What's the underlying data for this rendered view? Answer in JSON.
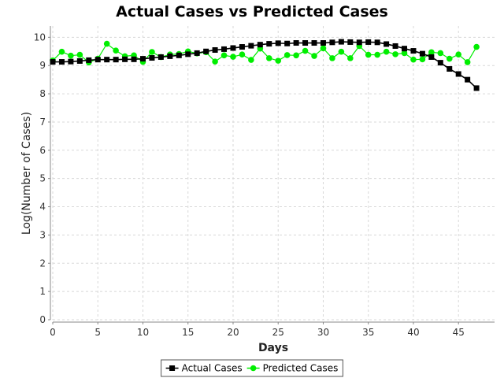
{
  "chart_data": {
    "type": "line",
    "title": "Actual Cases vs Predicted Cases",
    "xlabel": "Days",
    "ylabel": "Log(Number of Cases)",
    "xlim": [
      0,
      49
    ],
    "ylim": [
      0,
      10.4
    ],
    "xticks": [
      0,
      5,
      10,
      15,
      20,
      25,
      30,
      35,
      40,
      45
    ],
    "yticks": [
      0,
      1,
      2,
      3,
      4,
      5,
      6,
      7,
      8,
      9,
      10
    ],
    "grid": true,
    "legend": "bottom-center",
    "x": [
      0,
      1,
      2,
      3,
      4,
      5,
      6,
      7,
      8,
      9,
      10,
      11,
      12,
      13,
      14,
      15,
      16,
      17,
      18,
      19,
      20,
      21,
      22,
      23,
      24,
      25,
      26,
      27,
      28,
      29,
      30,
      31,
      32,
      33,
      34,
      35,
      36,
      37,
      38,
      39,
      40,
      41,
      42,
      43,
      44,
      45,
      46,
      47
    ],
    "series": [
      {
        "name": "Actual Cases",
        "color": "#000000",
        "marker": "square",
        "values": [
          9.13,
          9.13,
          9.14,
          9.16,
          9.19,
          9.21,
          9.21,
          9.21,
          9.22,
          9.22,
          9.24,
          9.27,
          9.3,
          9.33,
          9.36,
          9.4,
          9.44,
          9.5,
          9.55,
          9.58,
          9.62,
          9.66,
          9.7,
          9.74,
          9.77,
          9.79,
          9.78,
          9.8,
          9.8,
          9.8,
          9.8,
          9.82,
          9.84,
          9.83,
          9.82,
          9.83,
          9.82,
          9.76,
          9.69,
          9.6,
          9.52,
          9.42,
          9.3,
          9.1,
          8.88,
          8.7,
          8.5,
          8.2
        ]
      },
      {
        "name": "Predicted Cases",
        "color": "#00ee00",
        "marker": "circle",
        "values": [
          9.18,
          9.49,
          9.35,
          9.38,
          9.11,
          9.24,
          9.77,
          9.53,
          9.33,
          9.36,
          9.13,
          9.48,
          9.3,
          9.39,
          9.41,
          9.5,
          9.43,
          9.47,
          9.14,
          9.36,
          9.31,
          9.39,
          9.2,
          9.6,
          9.26,
          9.17,
          9.37,
          9.36,
          9.52,
          9.34,
          9.61,
          9.26,
          9.49,
          9.26,
          9.69,
          9.38,
          9.38,
          9.49,
          9.4,
          9.44,
          9.21,
          9.22,
          9.47,
          9.44,
          9.24,
          9.39,
          9.12,
          9.66
        ]
      }
    ]
  }
}
